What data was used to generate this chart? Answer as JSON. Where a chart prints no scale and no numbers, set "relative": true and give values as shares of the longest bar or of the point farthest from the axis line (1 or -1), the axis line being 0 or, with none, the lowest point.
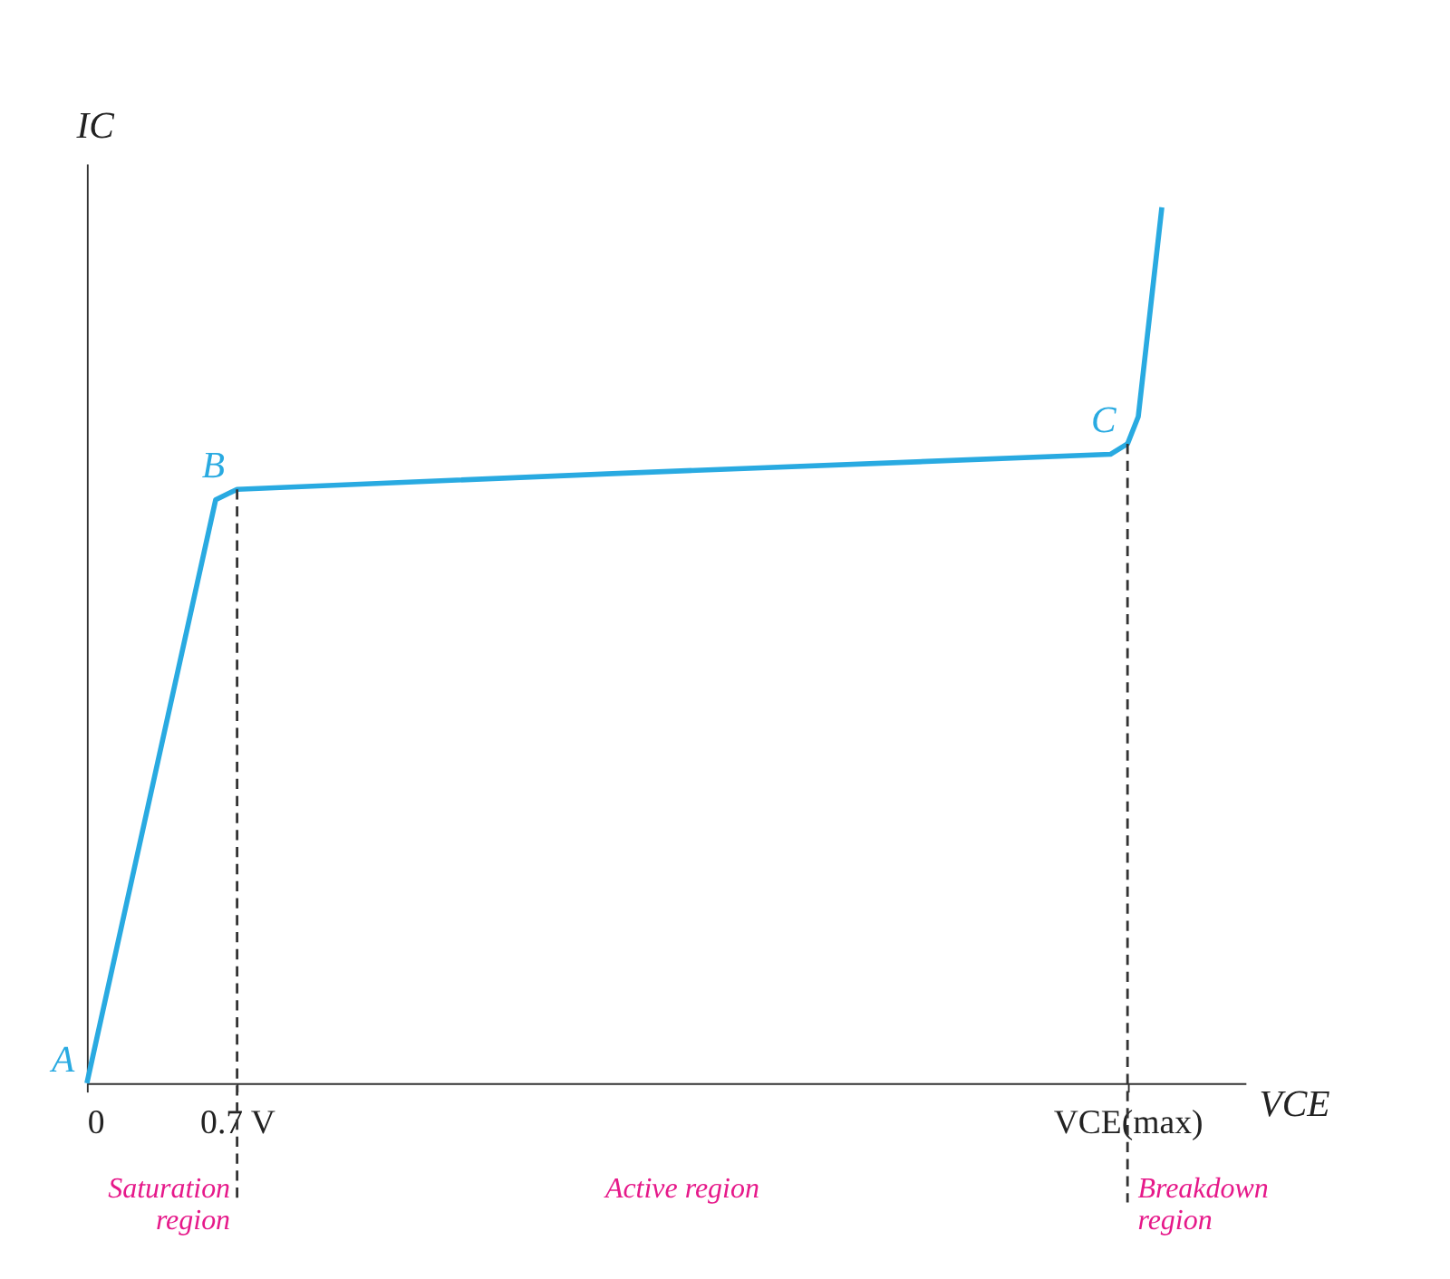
{
  "chart_data": {
    "type": "line",
    "relative": true,
    "xlabel": "VCE",
    "ylabel": "IC",
    "x": [
      0,
      0.6,
      0.7,
      2.45,
      4.77,
      4.85,
      4.9,
      5.01
    ],
    "series": [
      {
        "color": "#29aae1",
        "values": [
          0,
          0.666,
          0.678,
          0.696,
          0.718,
          0.73,
          0.761,
          1.0
        ]
      }
    ],
    "xlim": [
      0,
      5.4
    ],
    "xticks": [
      0,
      {
        "value": 0.7,
        "label": "0.7 V"
      },
      {
        "value": 4.85,
        "label": "VCE(max)"
      }
    ],
    "grid": false,
    "ref_lines": [
      {
        "axis": "x",
        "value": 0.7,
        "line_style": "dashed",
        "color": "#333333"
      },
      {
        "axis": "x",
        "value": 4.85,
        "line_style": "dashed",
        "color": "#333333"
      }
    ],
    "annotations": [
      {
        "text": "A",
        "x": 0,
        "y": 0
      },
      {
        "text": "B",
        "x": 0.7,
        "y": 0.678
      },
      {
        "text": "C",
        "x": 4.85,
        "y": 0.73
      },
      "Saturation region",
      "Active region",
      "Breakdown region"
    ]
  }
}
